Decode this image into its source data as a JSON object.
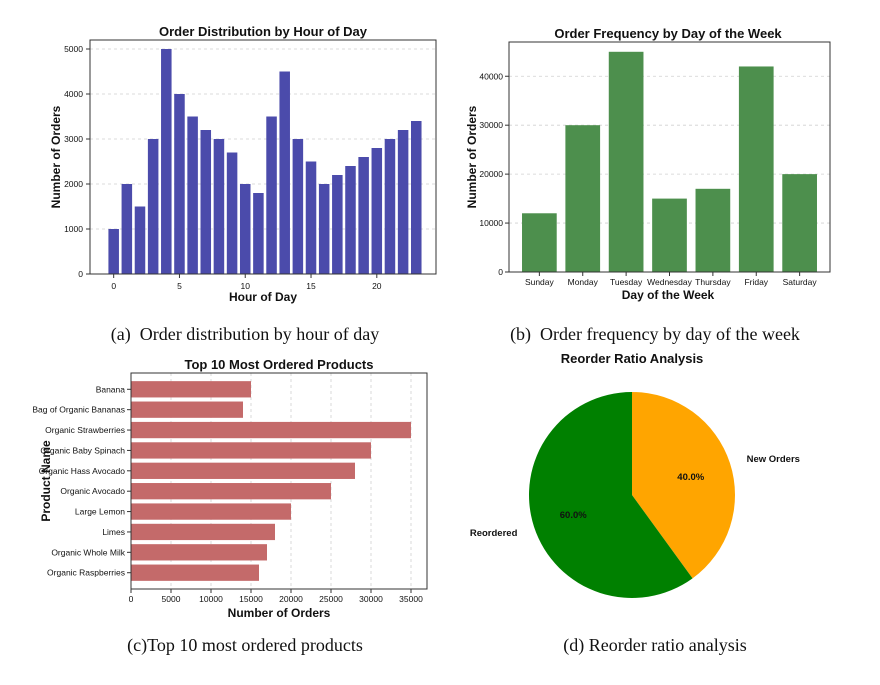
{
  "chart_data": [
    {
      "type": "bar",
      "title": "Order Distribution by Hour of Day",
      "xlabel": "Hour of Day",
      "ylabel": "Number of Orders",
      "x": [
        0,
        1,
        2,
        3,
        4,
        5,
        6,
        7,
        8,
        9,
        10,
        11,
        12,
        13,
        14,
        15,
        16,
        17,
        18,
        19,
        20,
        21,
        22,
        23
      ],
      "values": [
        1000,
        2000,
        1500,
        3000,
        5000,
        4000,
        3500,
        3200,
        3000,
        2700,
        2000,
        1800,
        3500,
        4500,
        3000,
        2500,
        2000,
        2200,
        2400,
        2600,
        2800,
        3000,
        3200,
        3400
      ],
      "xticks": [
        0,
        5,
        10,
        15,
        20
      ],
      "yticks": [
        0,
        1000,
        2000,
        3000,
        4000,
        5000
      ],
      "ylim": [
        0,
        5200
      ],
      "color": "#4b4bab",
      "grid": true
    },
    {
      "type": "bar",
      "title": "Order Frequency by Day of the Week",
      "xlabel": "Day of the Week",
      "ylabel": "Number of Orders",
      "categories": [
        "Sunday",
        "Monday",
        "Tuesday",
        "Wednesday",
        "Thursday",
        "Friday",
        "Saturday"
      ],
      "values": [
        12000,
        30000,
        45000,
        15000,
        17000,
        42000,
        20000
      ],
      "yticks": [
        0,
        10000,
        20000,
        30000,
        40000
      ],
      "ylim": [
        0,
        47000
      ],
      "color": "#4d8f4d",
      "grid": true
    },
    {
      "type": "bar",
      "orientation": "horizontal",
      "title": "Top 10 Most Ordered Products",
      "xlabel": "Number of Orders",
      "ylabel": "Product Name",
      "categories": [
        "Banana",
        "Bag of Organic Bananas",
        "Organic Strawberries",
        "Organic Baby Spinach",
        "Organic Hass Avocado",
        "Organic Avocado",
        "Large Lemon",
        "Limes",
        "Organic Whole Milk",
        "Organic Raspberries"
      ],
      "values": [
        15000,
        14000,
        35000,
        30000,
        28000,
        25000,
        20000,
        18000,
        17000,
        16000
      ],
      "xticks": [
        0,
        5000,
        10000,
        15000,
        20000,
        25000,
        30000,
        35000
      ],
      "xlim": [
        0,
        37000
      ],
      "color": "#c46a6a",
      "grid": true
    },
    {
      "type": "pie",
      "title": "Reorder Ratio Analysis",
      "labels": [
        "Reordered",
        "New Orders"
      ],
      "values": [
        60.0,
        40.0
      ],
      "pct_labels": [
        "60.0%",
        "40.0%"
      ],
      "colors": [
        "#008000",
        "#ffa500"
      ]
    }
  ],
  "captions": {
    "a": "(a)  Order distribution by hour of day",
    "b": "(b)  Order frequency by day of the week",
    "c": "(c)Top 10 most ordered products",
    "d": "(d) Reorder ratio analysis"
  }
}
